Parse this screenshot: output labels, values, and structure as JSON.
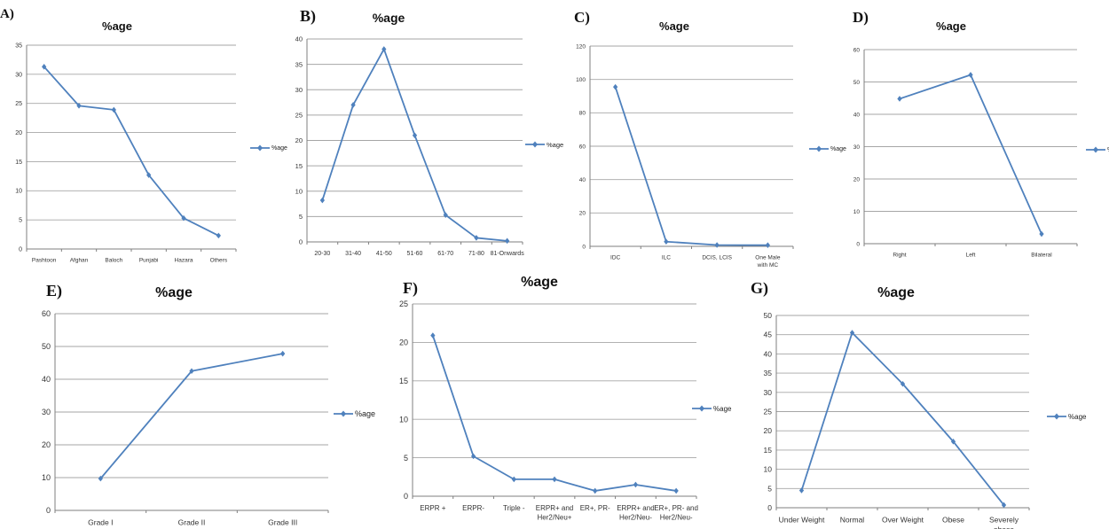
{
  "colors": {
    "series": "#4f81bd",
    "grid": "#a6a6a6",
    "axis": "#7f7f7f"
  },
  "chart_data": [
    {
      "panel": "A)",
      "type": "line",
      "title": "%age",
      "categories": [
        "Pashtoon",
        "Afghan",
        "Baloch",
        "Punjabi",
        "Hazara",
        "Others"
      ],
      "series": [
        {
          "name": "%age",
          "values": [
            31.3,
            24.6,
            23.9,
            12.7,
            5.3,
            2.3
          ]
        }
      ],
      "ylim": [
        0,
        35
      ],
      "yticks": [
        0,
        5,
        10,
        15,
        20,
        25,
        30,
        35
      ],
      "legend": "right",
      "grid": true
    },
    {
      "panel": "B)",
      "type": "line",
      "title": "%age",
      "categories": [
        "20-30",
        "31-40",
        "41-50",
        "51-60",
        "61-70",
        "71-80",
        "81-Onwards"
      ],
      "series": [
        {
          "name": "%age",
          "values": [
            8.2,
            27,
            38,
            21,
            5.3,
            0.8,
            0.2
          ]
        }
      ],
      "ylim": [
        0,
        40
      ],
      "yticks": [
        0,
        5,
        10,
        15,
        20,
        25,
        30,
        35,
        40
      ],
      "legend": "right",
      "grid": true
    },
    {
      "panel": "C)",
      "type": "line",
      "title": "%age",
      "categories": [
        "IDC",
        "ILC",
        "DCIS, LCIS",
        "One Male with MC"
      ],
      "series": [
        {
          "name": "%age",
          "values": [
            95.5,
            2.8,
            0.8,
            0.7
          ]
        }
      ],
      "ylim": [
        0,
        120
      ],
      "yticks": [
        0,
        20,
        40,
        60,
        80,
        100,
        120
      ],
      "legend": "right",
      "grid": true
    },
    {
      "panel": "D)",
      "type": "line",
      "title": "%age",
      "categories": [
        "Right",
        "Left",
        "Bilateral"
      ],
      "series": [
        {
          "name": "%age",
          "values": [
            44.8,
            52.2,
            3
          ]
        }
      ],
      "ylim": [
        0,
        60
      ],
      "yticks": [
        0,
        10,
        20,
        30,
        40,
        50,
        60
      ],
      "legend": "right",
      "grid": true
    },
    {
      "panel": "E)",
      "type": "line",
      "title": "%age",
      "categories": [
        "Grade I",
        "Grade II",
        "Grade III"
      ],
      "series": [
        {
          "name": "%age",
          "values": [
            9.7,
            42.5,
            47.8
          ]
        }
      ],
      "ylim": [
        0,
        60
      ],
      "yticks": [
        0,
        10,
        20,
        30,
        40,
        50,
        60
      ],
      "legend": "right",
      "grid": true
    },
    {
      "panel": "F)",
      "type": "line",
      "title": "%age",
      "categories": [
        "ERPR +",
        "ERPR-",
        "Triple -",
        "ERPR+ and Her2/Neu+",
        "ER+, PR-",
        "ERPR+ and Her2/Neu-",
        "ER+, PR- and Her2/Neu-"
      ],
      "series": [
        {
          "name": "%age",
          "values": [
            20.9,
            5.2,
            2.2,
            2.2,
            0.7,
            1.5,
            0.7
          ]
        }
      ],
      "ylim": [
        0,
        25
      ],
      "yticks": [
        0,
        5,
        10,
        15,
        20,
        25
      ],
      "legend": "right",
      "grid": true
    },
    {
      "panel": "G)",
      "type": "line",
      "title": "%age",
      "categories": [
        "Under Weight",
        "Normal",
        "Over Weight",
        "Obese",
        "Severely obese"
      ],
      "series": [
        {
          "name": "%age",
          "values": [
            4.5,
            45.5,
            32.2,
            17.2,
            0.7
          ]
        }
      ],
      "ylim": [
        0,
        50
      ],
      "yticks": [
        0,
        5,
        10,
        15,
        20,
        25,
        30,
        35,
        40,
        45,
        50
      ],
      "legend": "right",
      "grid": true
    }
  ]
}
